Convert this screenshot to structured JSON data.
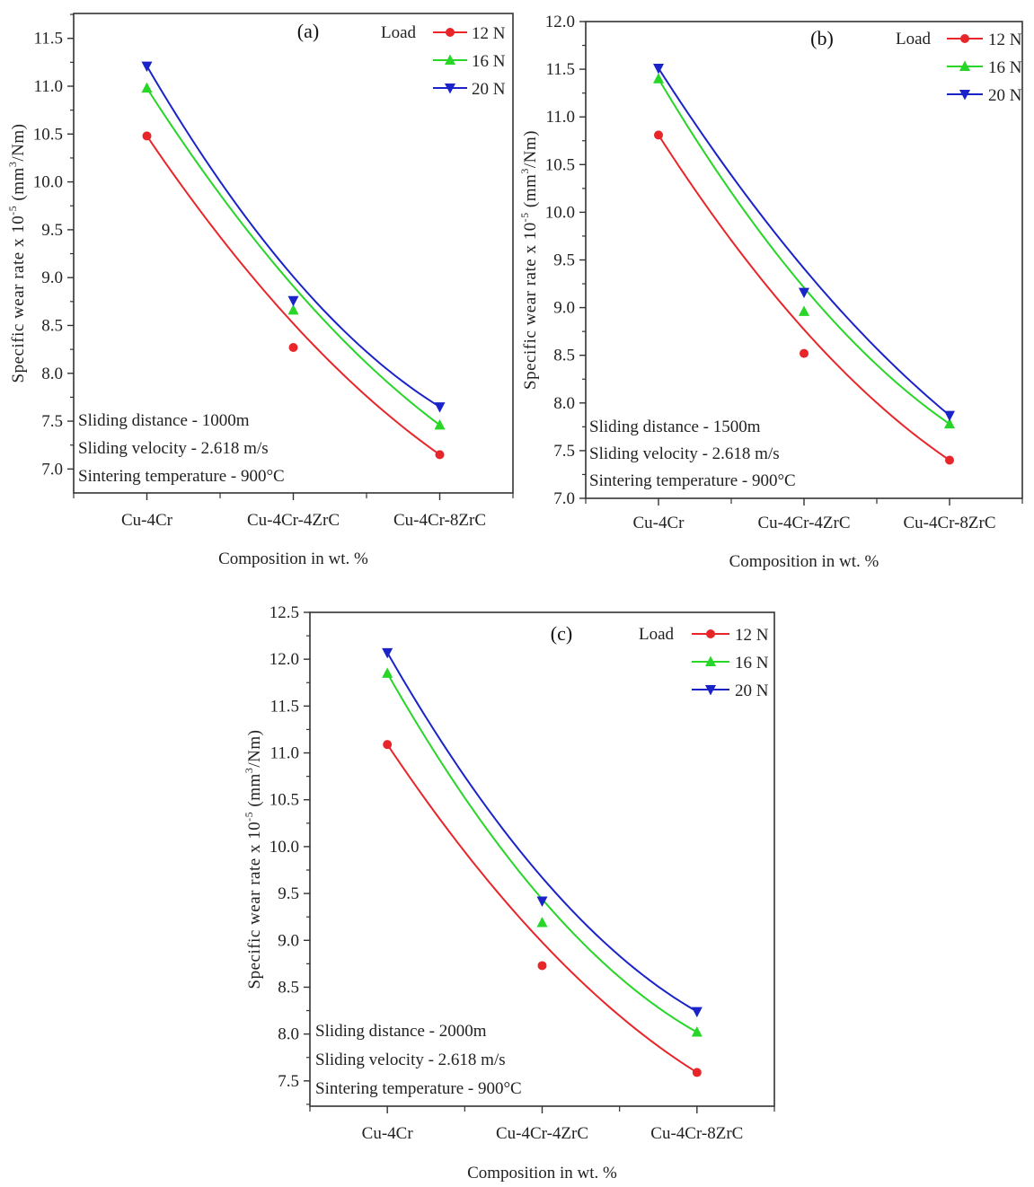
{
  "chart_data": [
    {
      "type": "line",
      "panel": "(a)",
      "title": "(a)",
      "xlabel": "Composition in wt. %",
      "ylabel": "Specific wear rate x 10^-5 (mm^3/Nm)",
      "ylabel_parts": {
        "main": "Specific wear rate x 10",
        "exp": "-5",
        "unit_pre": " (mm",
        "unit_exp": "3",
        "unit_post": "/Nm)"
      },
      "categories": [
        "Cu-4Cr",
        "Cu-4Cr-4ZrC",
        "Cu-4Cr-8ZrC"
      ],
      "ylim": [
        6.75,
        11.76
      ],
      "yticks": [
        7.0,
        7.5,
        8.0,
        8.5,
        9.0,
        9.5,
        10.0,
        10.5,
        11.0,
        11.5
      ],
      "ytick_labels": [
        "7.0",
        "7.5",
        "8.0",
        "8.5",
        "9.0",
        "9.5",
        "10.0",
        "10.5",
        "11.0",
        "11.5"
      ],
      "legend_title": "Load",
      "legend_position": "top-right",
      "series": [
        {
          "name": "12 N",
          "color": "#e8262a",
          "marker": "circle",
          "values": [
            10.48,
            8.27,
            7.15
          ]
        },
        {
          "name": "16 N",
          "color": "#27d627",
          "marker": "triangle-up",
          "values": [
            10.98,
            8.66,
            7.46
          ]
        },
        {
          "name": "20 N",
          "color": "#1a23c8",
          "marker": "triangle-down",
          "values": [
            11.21,
            8.76,
            7.65
          ]
        }
      ],
      "annotations": [
        "Sliding distance - 1000m",
        "Sliding velocity - 2.618 m/s",
        "Sintering temperature - 900°C"
      ],
      "grid": false
    },
    {
      "type": "line",
      "panel": "(b)",
      "title": "(b)",
      "xlabel": "Composition in wt. %",
      "ylabel": "Specific wear rate x 10^-5 (mm^3/Nm)",
      "ylabel_parts": {
        "main": "Specific wear rate x 10",
        "exp": "-5",
        "unit_pre": " (mm",
        "unit_exp": "3",
        "unit_post": "/Nm)"
      },
      "categories": [
        "Cu-4Cr",
        "Cu-4Cr-4ZrC",
        "Cu-4Cr-8ZrC"
      ],
      "ylim": [
        7.0,
        12.0
      ],
      "yticks": [
        7.0,
        7.5,
        8.0,
        8.5,
        9.0,
        9.5,
        10.0,
        10.5,
        11.0,
        11.5,
        12.0
      ],
      "ytick_labels": [
        "7.0",
        "7.5",
        "8.0",
        "8.5",
        "9.0",
        "9.5",
        "10.0",
        "10.5",
        "11.0",
        "11.5",
        "12.0"
      ],
      "legend_title": "Load",
      "legend_position": "top-right",
      "series": [
        {
          "name": "12 N",
          "color": "#e8262a",
          "marker": "circle",
          "values": [
            10.81,
            8.52,
            7.4
          ]
        },
        {
          "name": "16 N",
          "color": "#27d627",
          "marker": "triangle-up",
          "values": [
            11.4,
            8.96,
            7.78
          ]
        },
        {
          "name": "20 N",
          "color": "#1a23c8",
          "marker": "triangle-down",
          "values": [
            11.51,
            9.16,
            7.87
          ]
        }
      ],
      "annotations": [
        "Sliding distance - 1500m",
        "Sliding velocity - 2.618 m/s",
        "Sintering temperature - 900°C"
      ],
      "grid": false
    },
    {
      "type": "line",
      "panel": "(c)",
      "title": "(c)",
      "xlabel": "Composition in wt. %",
      "ylabel": "Specific wear rate x 10^-5 (mm^3/Nm)",
      "ylabel_parts": {
        "main": "Specific wear rate x 10",
        "exp": "-5",
        "unit_pre": " (mm",
        "unit_exp": "3",
        "unit_post": "/Nm)"
      },
      "categories": [
        "Cu-4Cr",
        "Cu-4Cr-4ZrC",
        "Cu-4Cr-8ZrC"
      ],
      "ylim": [
        7.23,
        12.5
      ],
      "yticks": [
        7.5,
        8.0,
        8.5,
        9.0,
        9.5,
        10.0,
        10.5,
        11.0,
        11.5,
        12.0,
        12.5
      ],
      "ytick_labels": [
        "7.5",
        "8.0",
        "8.5",
        "9.0",
        "9.5",
        "10.0",
        "10.5",
        "11.0",
        "11.5",
        "12.0",
        "12.5"
      ],
      "legend_title": "Load",
      "legend_position": "top-right",
      "series": [
        {
          "name": "12 N",
          "color": "#e8262a",
          "marker": "circle",
          "values": [
            11.09,
            8.73,
            7.59
          ]
        },
        {
          "name": "16 N",
          "color": "#27d627",
          "marker": "triangle-up",
          "values": [
            11.85,
            9.19,
            8.02
          ]
        },
        {
          "name": "20 N",
          "color": "#1a23c8",
          "marker": "triangle-down",
          "values": [
            12.07,
            9.42,
            8.24
          ]
        }
      ],
      "annotations": [
        "Sliding distance - 2000m",
        "Sliding velocity - 2.618 m/s",
        "Sintering temperature - 900°C"
      ],
      "grid": false
    }
  ]
}
